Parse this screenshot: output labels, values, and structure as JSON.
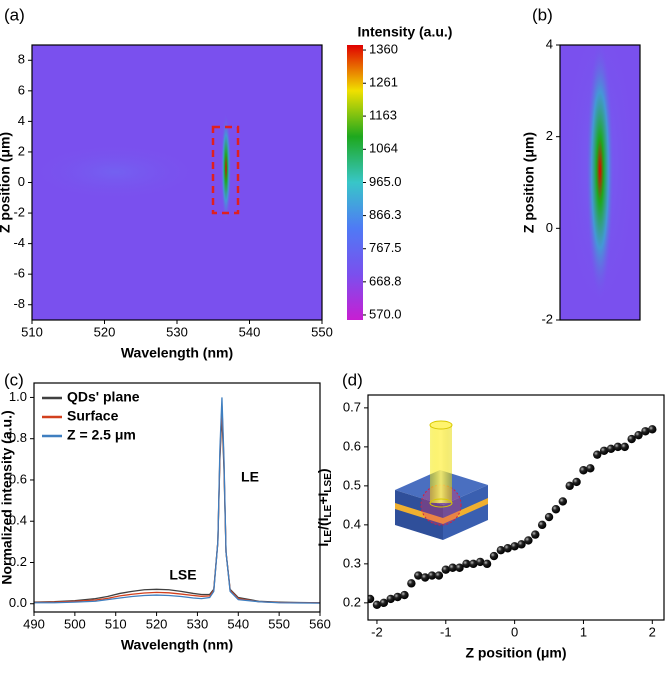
{
  "chart_data": [
    {
      "type": "heatmap",
      "panel": "(a)",
      "xlabel": "Wavelength (nm)",
      "ylabel": "Z position (μm)",
      "xlim": [
        510,
        550
      ],
      "xticks": [
        510,
        520,
        530,
        540,
        550
      ],
      "ylim": [
        -9,
        9
      ],
      "yticks": [
        -8,
        -6,
        -4,
        -2,
        0,
        2,
        4,
        6,
        8
      ],
      "background": "#7a50ee",
      "colorbar": {
        "title": "Intensity (a.u.)",
        "lim": [
          555,
          1375
        ],
        "colors": [
          "#c81ed2",
          "#7a50ee",
          "#4f7af5",
          "#38c6c8",
          "#1ea81e",
          "#f0e000",
          "#e00000"
        ],
        "ticks": [
          {
            "value": 1360,
            "label": "1360"
          },
          {
            "value": 1261,
            "label": "1261"
          },
          {
            "value": 1163,
            "label": "1163"
          },
          {
            "value": 1064,
            "label": "1064"
          },
          {
            "value": 965,
            "label": "965.0"
          },
          866.3,
          767.5,
          668.8,
          {
            "value": 570,
            "label": "570.0"
          }
        ]
      }
    },
    {
      "type": "heatmap",
      "panel": "(b)",
      "ylabel": "Z position (μm)",
      "ylim": [
        -2,
        4
      ],
      "yticks": [
        -2,
        0,
        2,
        4
      ],
      "background": "#7a50ee"
    },
    {
      "type": "line",
      "panel": "(c)",
      "xlabel": "Wavelength (nm)",
      "ylabel": "Normalized intensity (a.u.)",
      "xlim": [
        490,
        560
      ],
      "xticks": [
        490,
        500,
        510,
        520,
        530,
        540,
        550,
        560
      ],
      "ylim": [
        -0.04,
        1.07
      ],
      "yticks": [
        {
          "value": 0,
          "label": "0.0"
        },
        0.2,
        0.4,
        0.6,
        0.8,
        {
          "value": 1,
          "label": "1.0"
        }
      ],
      "annotations": [
        "LE",
        "LSE"
      ],
      "x": [
        490,
        495,
        500,
        505,
        508,
        511,
        514,
        517,
        520,
        523,
        526,
        529,
        531,
        533,
        534,
        535,
        535.5,
        536,
        536.5,
        537,
        538,
        540,
        545,
        550,
        555,
        560
      ],
      "series": [
        {
          "name": "QDs' plane",
          "color": "#404040",
          "values": [
            0.008,
            0.01,
            0.015,
            0.025,
            0.035,
            0.05,
            0.06,
            0.068,
            0.07,
            0.068,
            0.06,
            0.05,
            0.045,
            0.045,
            0.07,
            0.3,
            0.7,
            0.92,
            0.65,
            0.25,
            0.07,
            0.03,
            0.012,
            0.008,
            0.006,
            0.005
          ]
        },
        {
          "name": "Surface",
          "color": "#d2401e",
          "values": [
            0.006,
            0.008,
            0.012,
            0.018,
            0.026,
            0.038,
            0.046,
            0.052,
            0.055,
            0.053,
            0.047,
            0.04,
            0.036,
            0.038,
            0.065,
            0.3,
            0.72,
            0.96,
            0.68,
            0.25,
            0.065,
            0.025,
            0.01,
            0.006,
            0.005,
            0.004
          ]
        },
        {
          "name": "Z = 2.5 μm",
          "color": "#3f7fc0",
          "values": [
            0.005,
            0.005,
            0.008,
            0.012,
            0.02,
            0.028,
            0.035,
            0.04,
            0.042,
            0.04,
            0.035,
            0.028,
            0.025,
            0.03,
            0.06,
            0.3,
            0.75,
            1.0,
            0.7,
            0.25,
            0.06,
            0.02,
            0.01,
            0.005,
            0.004,
            0.003
          ]
        }
      ]
    },
    {
      "type": "scatter",
      "panel": "(d)",
      "xlabel": "Z position (μm)",
      "ylabel": [
        "I",
        "LE",
        "/(I",
        "LE",
        "+I",
        "LSE",
        ")"
      ],
      "xlim": [
        -2.13,
        2.17
      ],
      "xticks": [
        -2,
        -1,
        0,
        1,
        2
      ],
      "ylim": [
        0.156,
        0.733
      ],
      "yticks": [
        0.2,
        0.3,
        0.4,
        0.5,
        0.6,
        0.7
      ],
      "color": "#111111",
      "x": [
        -2.1,
        -2.0,
        -1.9,
        -1.8,
        -1.7,
        -1.6,
        -1.5,
        -1.4,
        -1.3,
        -1.2,
        -1.1,
        -1.0,
        -0.9,
        -0.8,
        -0.7,
        -0.6,
        -0.5,
        -0.4,
        -0.3,
        -0.2,
        -0.1,
        0,
        0.1,
        0.2,
        0.3,
        0.4,
        0.5,
        0.6,
        0.7,
        0.8,
        0.9,
        1.0,
        1.1,
        1.2,
        1.3,
        1.4,
        1.5,
        1.6,
        1.7,
        1.8,
        1.9,
        2.0
      ],
      "values": [
        0.21,
        0.195,
        0.2,
        0.21,
        0.215,
        0.22,
        0.25,
        0.27,
        0.265,
        0.27,
        0.27,
        0.285,
        0.29,
        0.29,
        0.3,
        0.3,
        0.305,
        0.3,
        0.32,
        0.335,
        0.34,
        0.345,
        0.35,
        0.36,
        0.375,
        0.4,
        0.42,
        0.44,
        0.46,
        0.5,
        0.51,
        0.54,
        0.545,
        0.58,
        0.59,
        0.595,
        0.6,
        0.6,
        0.62,
        0.63,
        0.64,
        0.645
      ]
    }
  ]
}
